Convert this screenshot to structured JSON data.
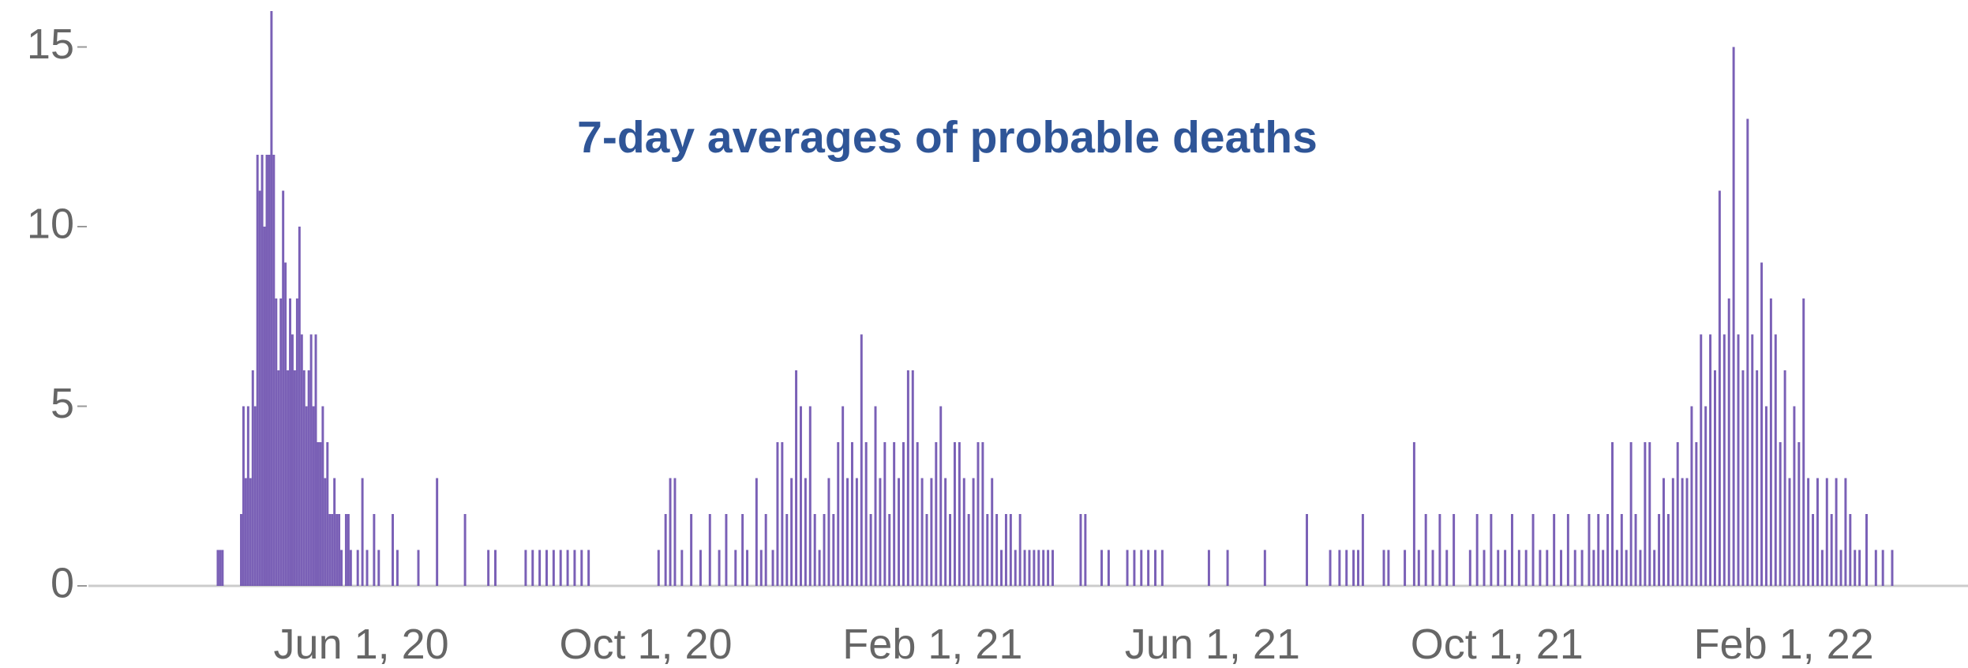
{
  "chart_data": {
    "type": "bar",
    "title": "7-day averages of probable deaths",
    "color": "#6b4fae",
    "title_color": "#2f5597",
    "xlim": [
      "2020-02-05",
      "2022-04-21"
    ],
    "xticks": [
      {
        "value": "2020-06-01",
        "label": "Jun 1, 20"
      },
      {
        "value": "2020-10-01",
        "label": "Oct 1, 20"
      },
      {
        "value": "2021-02-01",
        "label": "Feb 1, 21"
      },
      {
        "value": "2021-06-01",
        "label": "Jun 1, 21"
      },
      {
        "value": "2021-10-01",
        "label": "Oct 1, 21"
      },
      {
        "value": "2022-02-01",
        "label": "Feb 1, 22"
      }
    ],
    "ylim": [
      0,
      16
    ],
    "yticks": [
      0,
      5,
      10,
      15
    ],
    "grid": false,
    "x": [
      "2020-03-31",
      "2020-04-01",
      "2020-04-02",
      "2020-04-10",
      "2020-04-11",
      "2020-04-12",
      "2020-04-13",
      "2020-04-14",
      "2020-04-15",
      "2020-04-16",
      "2020-04-17",
      "2020-04-18",
      "2020-04-19",
      "2020-04-20",
      "2020-04-21",
      "2020-04-22",
      "2020-04-23",
      "2020-04-24",
      "2020-04-25",
      "2020-04-26",
      "2020-04-27",
      "2020-04-28",
      "2020-04-29",
      "2020-04-30",
      "2020-05-01",
      "2020-05-02",
      "2020-05-03",
      "2020-05-04",
      "2020-05-05",
      "2020-05-06",
      "2020-05-07",
      "2020-05-08",
      "2020-05-09",
      "2020-05-10",
      "2020-05-11",
      "2020-05-12",
      "2020-05-13",
      "2020-05-14",
      "2020-05-15",
      "2020-05-16",
      "2020-05-17",
      "2020-05-18",
      "2020-05-19",
      "2020-05-20",
      "2020-05-21",
      "2020-05-22",
      "2020-05-23",
      "2020-05-25",
      "2020-05-26",
      "2020-05-27",
      "2020-05-30",
      "2020-06-01",
      "2020-06-03",
      "2020-06-06",
      "2020-06-08",
      "2020-06-14",
      "2020-06-16",
      "2020-06-25",
      "2020-07-03",
      "2020-07-15",
      "2020-07-25",
      "2020-07-28",
      "2020-08-10",
      "2020-08-13",
      "2020-08-16",
      "2020-08-19",
      "2020-08-22",
      "2020-08-25",
      "2020-08-28",
      "2020-08-31",
      "2020-09-03",
      "2020-09-06",
      "2020-10-06",
      "2020-10-09",
      "2020-10-11",
      "2020-10-13",
      "2020-10-16",
      "2020-10-20",
      "2020-10-24",
      "2020-10-28",
      "2020-11-01",
      "2020-11-04",
      "2020-11-08",
      "2020-11-11",
      "2020-11-13",
      "2020-11-17",
      "2020-11-19",
      "2020-11-21",
      "2020-11-24",
      "2020-11-26",
      "2020-11-28",
      "2020-11-30",
      "2020-12-02",
      "2020-12-04",
      "2020-12-06",
      "2020-12-08",
      "2020-12-10",
      "2020-12-12",
      "2020-12-14",
      "2020-12-16",
      "2020-12-18",
      "2020-12-20",
      "2020-12-22",
      "2020-12-24",
      "2020-12-26",
      "2020-12-28",
      "2020-12-30",
      "2021-01-01",
      "2021-01-03",
      "2021-01-05",
      "2021-01-07",
      "2021-01-09",
      "2021-01-11",
      "2021-01-13",
      "2021-01-15",
      "2021-01-17",
      "2021-01-19",
      "2021-01-21",
      "2021-01-23",
      "2021-01-25",
      "2021-01-27",
      "2021-01-29",
      "2021-01-31",
      "2021-02-02",
      "2021-02-04",
      "2021-02-06",
      "2021-02-08",
      "2021-02-10",
      "2021-02-12",
      "2021-02-14",
      "2021-02-16",
      "2021-02-18",
      "2021-02-20",
      "2021-02-22",
      "2021-02-24",
      "2021-02-26",
      "2021-02-28",
      "2021-03-02",
      "2021-03-04",
      "2021-03-06",
      "2021-03-08",
      "2021-03-10",
      "2021-03-12",
      "2021-03-14",
      "2021-03-16",
      "2021-03-18",
      "2021-03-20",
      "2021-03-22",
      "2021-03-24",
      "2021-04-05",
      "2021-04-07",
      "2021-04-14",
      "2021-04-17",
      "2021-04-25",
      "2021-04-28",
      "2021-05-01",
      "2021-05-04",
      "2021-05-07",
      "2021-05-10",
      "2021-05-30",
      "2021-06-07",
      "2021-06-23",
      "2021-07-11",
      "2021-07-21",
      "2021-07-25",
      "2021-07-28",
      "2021-07-31",
      "2021-08-02",
      "2021-08-04",
      "2021-08-13",
      "2021-08-15",
      "2021-08-22",
      "2021-08-26",
      "2021-08-28",
      "2021-08-31",
      "2021-09-03",
      "2021-09-06",
      "2021-09-09",
      "2021-09-12",
      "2021-09-19",
      "2021-09-22",
      "2021-09-25",
      "2021-09-28",
      "2021-10-01",
      "2021-10-04",
      "2021-10-07",
      "2021-10-10",
      "2021-10-13",
      "2021-10-16",
      "2021-10-19",
      "2021-10-22",
      "2021-10-25",
      "2021-10-28",
      "2021-10-31",
      "2021-11-03",
      "2021-11-06",
      "2021-11-09",
      "2021-11-11",
      "2021-11-13",
      "2021-11-15",
      "2021-11-17",
      "2021-11-19",
      "2021-11-21",
      "2021-11-23",
      "2021-11-25",
      "2021-11-27",
      "2021-11-29",
      "2021-12-01",
      "2021-12-03",
      "2021-12-05",
      "2021-12-07",
      "2021-12-09",
      "2021-12-11",
      "2021-12-13",
      "2021-12-15",
      "2021-12-17",
      "2021-12-19",
      "2021-12-21",
      "2021-12-23",
      "2021-12-25",
      "2021-12-27",
      "2021-12-29",
      "2021-12-31",
      "2022-01-02",
      "2022-01-04",
      "2022-01-06",
      "2022-01-08",
      "2022-01-10",
      "2022-01-12",
      "2022-01-14",
      "2022-01-16",
      "2022-01-18",
      "2022-01-20",
      "2022-01-22",
      "2022-01-24",
      "2022-01-26",
      "2022-01-28",
      "2022-01-30",
      "2022-02-01",
      "2022-02-03",
      "2022-02-05",
      "2022-02-07",
      "2022-02-09",
      "2022-02-11",
      "2022-02-13",
      "2022-02-15",
      "2022-02-17",
      "2022-02-19",
      "2022-02-21",
      "2022-02-23",
      "2022-02-25",
      "2022-02-27",
      "2022-03-01",
      "2022-03-03",
      "2022-03-05",
      "2022-03-08",
      "2022-03-12",
      "2022-03-15",
      "2022-03-19"
    ],
    "values": [
      1,
      1,
      1,
      2,
      5,
      3,
      5,
      3,
      6,
      5,
      12,
      11,
      12,
      10,
      12,
      12,
      16,
      12,
      8,
      6,
      8,
      11,
      9,
      6,
      8,
      7,
      6,
      8,
      10,
      7,
      6,
      5,
      6,
      7,
      5,
      7,
      4,
      4,
      5,
      3,
      4,
      2,
      2,
      3,
      2,
      2,
      1,
      2,
      2,
      1,
      1,
      3,
      1,
      2,
      1,
      2,
      1,
      1,
      3,
      2,
      1,
      1,
      1,
      1,
      1,
      1,
      1,
      1,
      1,
      1,
      1,
      1,
      1,
      2,
      3,
      3,
      1,
      2,
      1,
      2,
      1,
      2,
      1,
      2,
      1,
      3,
      1,
      2,
      1,
      4,
      4,
      2,
      3,
      6,
      5,
      3,
      5,
      2,
      1,
      2,
      3,
      2,
      4,
      5,
      3,
      4,
      3,
      7,
      4,
      2,
      5,
      3,
      4,
      2,
      4,
      3,
      4,
      6,
      6,
      4,
      3,
      2,
      3,
      4,
      5,
      3,
      2,
      4,
      4,
      3,
      2,
      3,
      4,
      4,
      2,
      3,
      2,
      1,
      2,
      2,
      1,
      2,
      1,
      1,
      1,
      1,
      1,
      1,
      1,
      2,
      2,
      1,
      1,
      1,
      1,
      1,
      1,
      1,
      1,
      1,
      1,
      1,
      2,
      1,
      1,
      1,
      1,
      1,
      2,
      1,
      1,
      1,
      4,
      1,
      2,
      1,
      2,
      1,
      2,
      1,
      2,
      1,
      2,
      1,
      1,
      2,
      1,
      1,
      2,
      1,
      1,
      2,
      1,
      2,
      1,
      1,
      2,
      1,
      2,
      1,
      2,
      4,
      1,
      2,
      1,
      4,
      2,
      1,
      4,
      4,
      1,
      2,
      3,
      2,
      3,
      4,
      3,
      3,
      5,
      4,
      7,
      5,
      7,
      6,
      11,
      7,
      8,
      15,
      7,
      6,
      13,
      7,
      6,
      9,
      5,
      8,
      7,
      4,
      6,
      3,
      5,
      4,
      8,
      3,
      2,
      3,
      1,
      3,
      2,
      3,
      1,
      3,
      2,
      1,
      1,
      2,
      1,
      1,
      1
    ]
  }
}
